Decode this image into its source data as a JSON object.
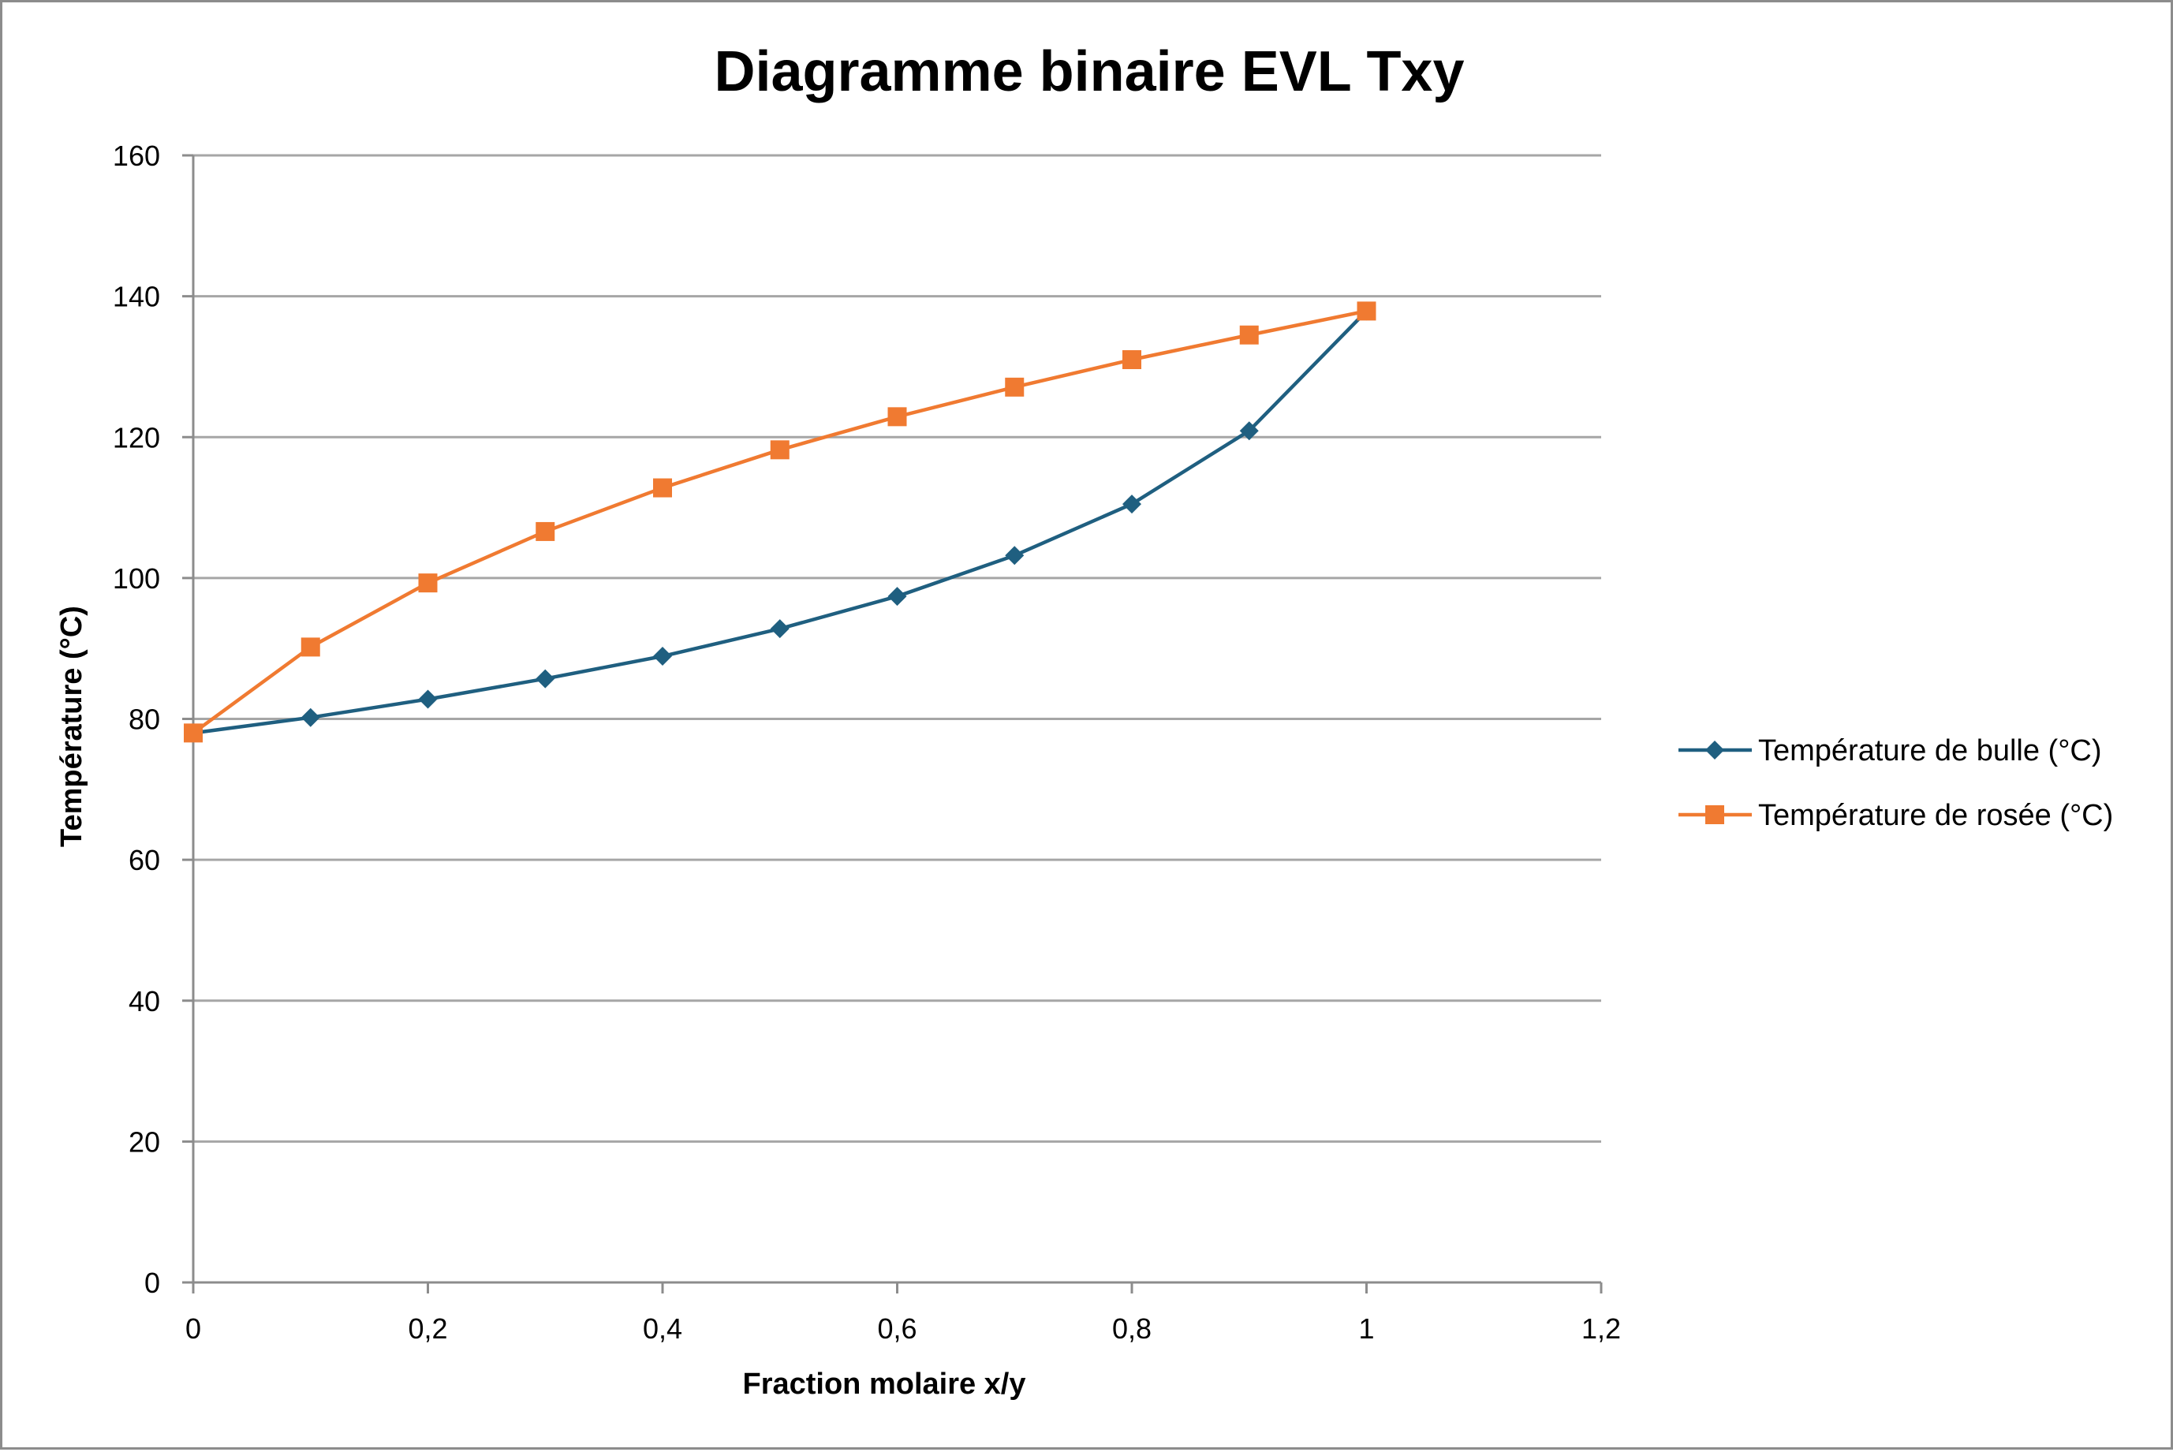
{
  "chart_data": {
    "type": "line",
    "title": "Diagramme binaire EVL Txy",
    "xlabel": "Fraction molaire x/y",
    "ylabel": "Température (°C)",
    "xlim": [
      0,
      1.2
    ],
    "ylim": [
      0,
      160
    ],
    "x_ticks": [
      "0",
      "0,2",
      "0,4",
      "0,6",
      "0,8",
      "1",
      "1,2"
    ],
    "x_tick_values": [
      0,
      0.2,
      0.4,
      0.6,
      0.8,
      1.0,
      1.2
    ],
    "y_ticks": [
      "0",
      "20",
      "40",
      "60",
      "80",
      "100",
      "120",
      "140",
      "160"
    ],
    "y_tick_values": [
      0,
      20,
      40,
      60,
      80,
      100,
      120,
      140,
      160
    ],
    "grid": "horizontal",
    "legend_position": "right",
    "x": [
      0,
      0.1,
      0.2,
      0.3,
      0.4,
      0.5,
      0.6,
      0.7,
      0.8,
      0.9,
      1.0
    ],
    "series": [
      {
        "name": "Température de bulle (°C)",
        "color": "#1f5f80",
        "marker": "diamond",
        "values": [
          78,
          80.2,
          82.8,
          85.7,
          88.9,
          92.8,
          97.4,
          103.2,
          110.5,
          120.9,
          137.9
        ]
      },
      {
        "name": "Température de rosée (°C)",
        "color": "#f07a31",
        "marker": "square",
        "values": [
          78,
          90.2,
          99.3,
          106.6,
          112.8,
          118.2,
          122.9,
          127.1,
          131.0,
          134.5,
          137.9
        ]
      }
    ]
  }
}
